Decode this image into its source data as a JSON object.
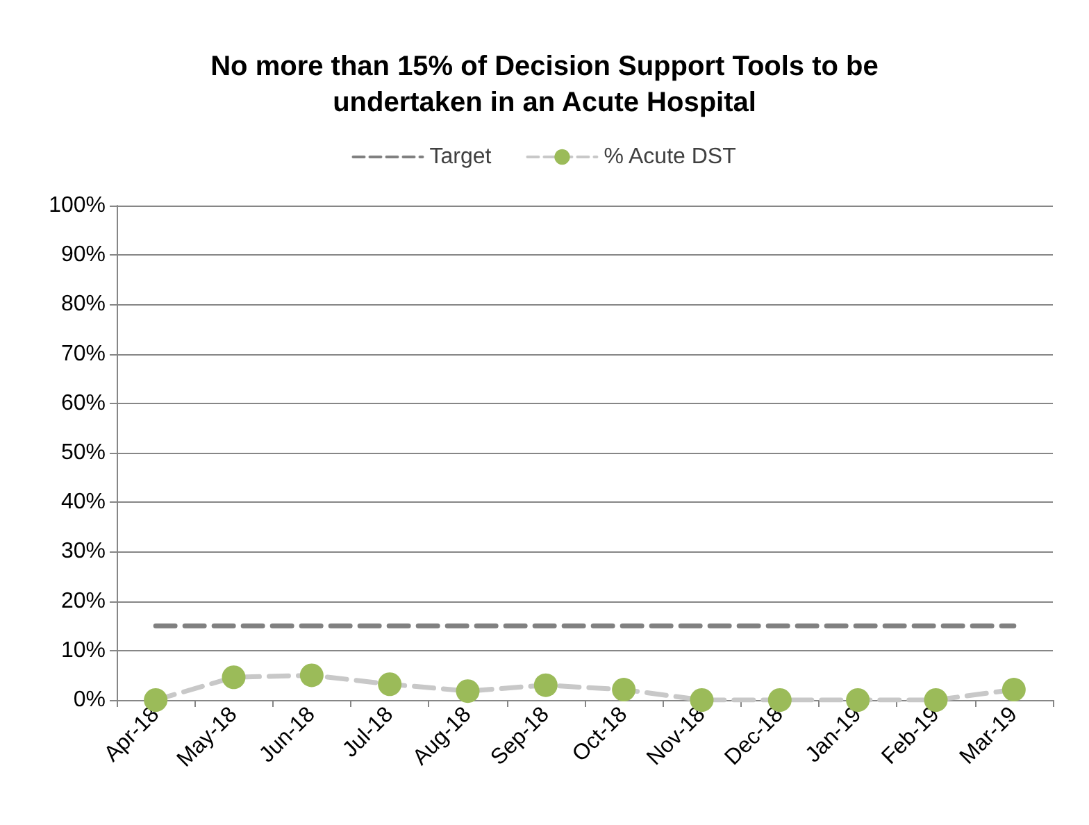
{
  "chart_data": {
    "type": "line",
    "title": "No more than 15% of Decision Support Tools to be\nundertaken in an Acute Hospital",
    "categories": [
      "Apr-18",
      "May-18",
      "Jun-18",
      "Jul-18",
      "Aug-18",
      "Sep-18",
      "Oct-18",
      "Nov-18",
      "Dec-18",
      "Jan-19",
      "Feb-19",
      "Mar-19"
    ],
    "series": [
      {
        "name": "Target",
        "color": "#808080",
        "marker": "none",
        "line_style": "dashed",
        "values": [
          15,
          15,
          15,
          15,
          15,
          15,
          15,
          15,
          15,
          15,
          15,
          15
        ]
      },
      {
        "name": "% Acute DST",
        "color": "#c8c8c8",
        "colors": [
          "#9bbb59",
          "#9bbb59",
          "#9bbb59",
          "#9bbb59",
          "#9bbb59",
          "#9bbb59",
          "#9bbb59",
          "#9bbb59",
          "#9bbb59",
          "#9bbb59",
          "#9bbb59",
          "#9bbb59"
        ],
        "marker": "circle",
        "line_style": "dashed",
        "values": [
          0,
          4.6,
          5,
          3.2,
          1.8,
          3,
          2.1,
          0,
          0,
          0,
          0,
          2.1
        ]
      }
    ],
    "ylim": [
      0,
      100
    ],
    "yticks": [
      {
        "value": 0,
        "label": "0%"
      },
      {
        "value": 10,
        "label": "10%"
      },
      {
        "value": 20,
        "label": "20%"
      },
      {
        "value": 30,
        "label": "30%"
      },
      {
        "value": 40,
        "label": "40%"
      },
      {
        "value": 50,
        "label": "50%"
      },
      {
        "value": 60,
        "label": "60%"
      },
      {
        "value": 70,
        "label": "70%"
      },
      {
        "value": 80,
        "label": "80%"
      },
      {
        "value": 90,
        "label": "90%"
      },
      {
        "value": 100,
        "label": "100%"
      }
    ],
    "grid": "y",
    "legend": "top"
  }
}
